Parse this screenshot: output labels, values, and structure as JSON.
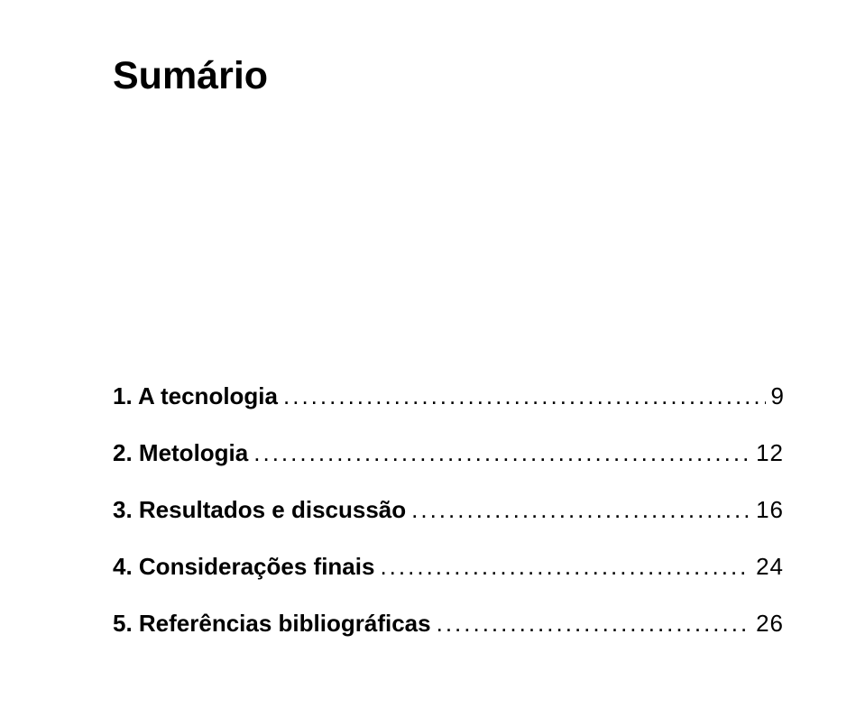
{
  "title": "Sumário",
  "toc": [
    {
      "label": "1. A tecnologia",
      "page": "9"
    },
    {
      "label": "2. Metologia",
      "page": "12"
    },
    {
      "label": "3. Resultados e discussão",
      "page": "16"
    },
    {
      "label": "4. Considerações finais",
      "page": "24"
    },
    {
      "label": "5. Referências bibliográficas",
      "page": "26"
    }
  ]
}
